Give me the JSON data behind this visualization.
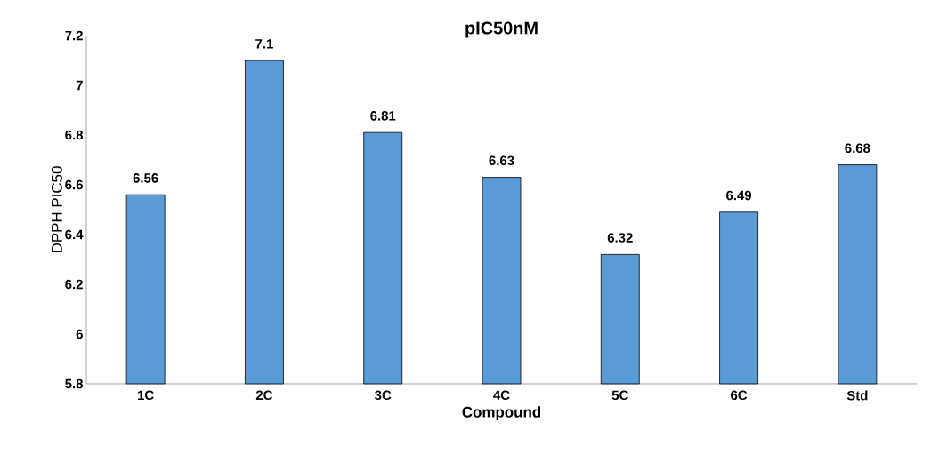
{
  "chart_data": {
    "type": "bar",
    "title": "pIC50nM",
    "xlabel": "Compound",
    "ylabel": "DPPH PIC50",
    "categories": [
      "1C",
      "2C",
      "3C",
      "4C",
      "5C",
      "6C",
      "Std"
    ],
    "values": [
      6.56,
      7.1,
      6.81,
      6.63,
      6.32,
      6.49,
      6.68
    ],
    "color": "#5b9bd5",
    "data_labels": true,
    "ylim": [
      5.8,
      7.2
    ],
    "yticks": [
      5.8,
      6,
      6.2,
      6.4,
      6.6,
      6.8,
      7,
      7.2
    ]
  }
}
